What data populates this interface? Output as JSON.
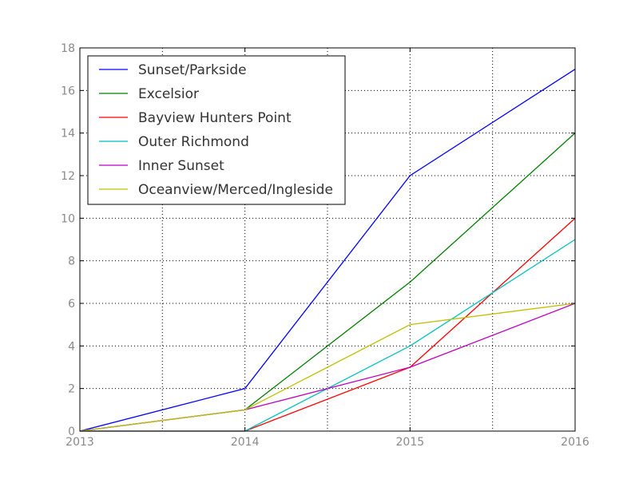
{
  "chart_data": {
    "type": "line",
    "x": [
      2013,
      2014,
      2015,
      2016
    ],
    "xlim": [
      2013,
      2016
    ],
    "ylim": [
      0,
      18
    ],
    "xticks": [
      2013,
      2014,
      2015,
      2016
    ],
    "yticks": [
      0,
      2,
      4,
      6,
      8,
      10,
      12,
      14,
      16,
      18
    ],
    "grid": true,
    "legend_position": "top-left",
    "series": [
      {
        "name": "Sunset/Parkside",
        "color": "#0000ff",
        "values": [
          0,
          2,
          12,
          17
        ]
      },
      {
        "name": "Excelsior",
        "color": "#008000",
        "values": [
          0,
          1,
          7,
          14
        ]
      },
      {
        "name": "Bayview Hunters Point",
        "color": "#ff0000",
        "values": [
          0,
          0,
          3,
          10
        ]
      },
      {
        "name": "Outer Richmond",
        "color": "#00bfbf",
        "values": [
          0,
          0,
          4,
          9
        ]
      },
      {
        "name": "Inner Sunset",
        "color": "#bf00bf",
        "values": [
          0,
          1,
          3,
          6
        ]
      },
      {
        "name": "Oceanview/Merced/Ingleside",
        "color": "#bfbf00",
        "values": [
          0,
          1,
          5,
          6
        ]
      }
    ]
  }
}
